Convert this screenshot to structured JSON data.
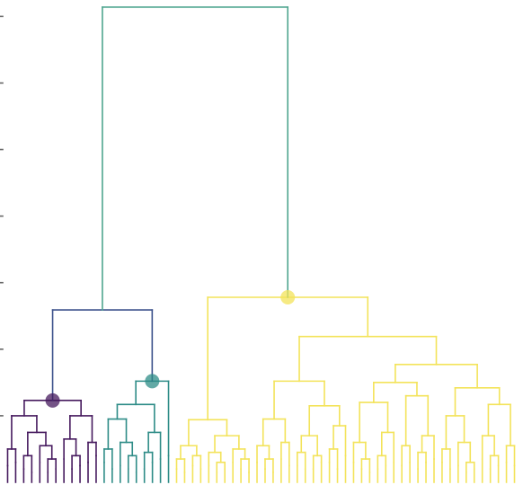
{
  "chart_data": {
    "type": "dendrogram",
    "ylim": [
      0,
      7.2
    ],
    "yticks": [
      1,
      2,
      3,
      4,
      5,
      6,
      7
    ],
    "tree": {
      "height": 7.14,
      "color": "#4fa58f",
      "children": [
        {
          "height": 2.59,
          "color": "#3b518b",
          "children": [
            {
              "height": 1.23,
              "color": "#461a5e",
              "marker": true,
              "children": [
                {
                  "height": 1.0,
                  "children": [
                    {
                      "height": 0.5,
                      "children": [
                        0.25,
                        0.3
                      ]
                    },
                    {
                      "height": 0.75,
                      "children": [
                        {
                          "height": 0.4,
                          "children": [
                            0.2,
                            0.15
                          ]
                        },
                        {
                          "height": 0.55,
                          "children": [
                            0.3,
                            {
                              "height": 0.35,
                              "children": [
                                0.15,
                                0.2
                              ]
                            }
                          ]
                        }
                      ]
                    }
                  ]
                },
                {
                  "height": 1.0,
                  "children": [
                    {
                      "height": 0.65,
                      "children": [
                        0.35,
                        {
                          "height": 0.4,
                          "children": [
                            0.2,
                            0.25
                          ]
                        }
                      ]
                    },
                    {
                      "height": 0.6,
                      "children": [
                        0.3,
                        0.4
                      ]
                    }
                  ]
                }
              ]
            },
            {
              "height": 1.52,
              "color": "#2e8c87",
              "marker": true,
              "children": [
                {
                  "height": 1.17,
                  "children": [
                    {
                      "height": 0.95,
                      "children": [
                        {
                          "height": 0.5,
                          "children": [
                            0.3,
                            0.2
                          ]
                        },
                        {
                          "height": 0.6,
                          "children": [
                            0.25,
                            {
                              "height": 0.4,
                              "children": [
                                0.2,
                                0.15
                              ]
                            }
                          ]
                        }
                      ]
                    },
                    {
                      "height": 0.75,
                      "children": [
                        {
                          "height": 0.45,
                          "children": [
                            0.2,
                            0.3
                          ]
                        },
                        0.35
                      ]
                    }
                  ]
                },
                0.4
              ]
            }
          ]
        },
        {
          "height": 2.78,
          "color": "#f3e35a",
          "marker": true,
          "children": [
            {
              "height": 0.94,
              "children": [
                {
                  "height": 0.55,
                  "children": [
                    {
                      "height": 0.35,
                      "children": [
                        0.2,
                        0.15
                      ]
                    },
                    {
                      "height": 0.4,
                      "children": [
                        0.25,
                        0.2
                      ]
                    }
                  ]
                },
                {
                  "height": 0.7,
                  "children": [
                    {
                      "height": 0.45,
                      "children": [
                        0.25,
                        {
                          "height": 0.3,
                          "children": [
                            0.15,
                            0.2
                          ]
                        }
                      ]
                    },
                    {
                      "height": 0.5,
                      "children": [
                        0.3,
                        {
                          "height": 0.35,
                          "children": [
                            0.2,
                            0.15
                          ]
                        }
                      ]
                    }
                  ]
                }
              ]
            },
            {
              "height": 2.19,
              "children": [
                {
                  "height": 1.52,
                  "children": [
                    {
                      "height": 0.95,
                      "children": [
                        {
                          "height": 0.55,
                          "children": [
                            0.3,
                            {
                              "height": 0.35,
                              "children": [
                                0.2,
                                0.15
                              ]
                            }
                          ]
                        },
                        {
                          "height": 0.6,
                          "children": [
                            0.35,
                            0.25
                          ]
                        }
                      ]
                    },
                    {
                      "height": 1.15,
                      "children": [
                        {
                          "height": 0.7,
                          "children": [
                            {
                              "height": 0.45,
                              "children": [
                                0.25,
                                0.2
                              ]
                            },
                            {
                              "height": 0.4,
                              "children": [
                                0.2,
                                0.3
                              ]
                            }
                          ]
                        },
                        {
                          "height": 0.85,
                          "children": [
                            {
                              "height": 0.5,
                              "children": [
                                0.3,
                                0.2
                              ]
                            },
                            0.4
                          ]
                        }
                      ]
                    }
                  ]
                },
                {
                  "height": 1.77,
                  "children": [
                    {
                      "height": 1.5,
                      "children": [
                        {
                          "height": 1.2,
                          "children": [
                            {
                              "height": 0.6,
                              "children": [
                                0.3,
                                {
                                  "height": 0.35,
                                  "children": [
                                    0.2,
                                    0.15
                                  ]
                                }
                              ]
                            },
                            {
                              "height": 0.75,
                              "children": [
                                {
                                  "height": 0.4,
                                  "children": [
                                    0.2,
                                    0.25
                                  ]
                                },
                                0.3
                              ]
                            }
                          ]
                        },
                        {
                          "height": 1.3,
                          "children": [
                            {
                              "height": 0.55,
                              "children": [
                                0.25,
                                0.3
                              ]
                            },
                            {
                              "height": 0.7,
                              "children": [
                                {
                                  "height": 0.45,
                                  "children": [
                                    0.2,
                                    0.3
                                  ]
                                },
                                0.35
                              ]
                            }
                          ]
                        }
                      ]
                    },
                    {
                      "height": 1.42,
                      "children": [
                        {
                          "height": 1.0,
                          "children": [
                            {
                              "height": 0.5,
                              "children": [
                                0.3,
                                0.2
                              ]
                            },
                            {
                              "height": 0.6,
                              "children": [
                                0.25,
                                {
                                  "height": 0.3,
                                  "children": [
                                    0.15,
                                    0.2
                                  ]
                                }
                              ]
                            }
                          ]
                        },
                        {
                          "height": 1.17,
                          "children": [
                            {
                              "height": 0.7,
                              "children": [
                                0.35,
                                {
                                  "height": 0.4,
                                  "children": [
                                    0.2,
                                    0.25
                                  ]
                                }
                              ]
                            },
                            {
                              "height": 0.55,
                              "children": [
                                0.3,
                                0.25
                              ]
                            }
                          ]
                        }
                      ]
                    }
                  ]
                }
              ]
            }
          ]
        }
      ]
    }
  }
}
